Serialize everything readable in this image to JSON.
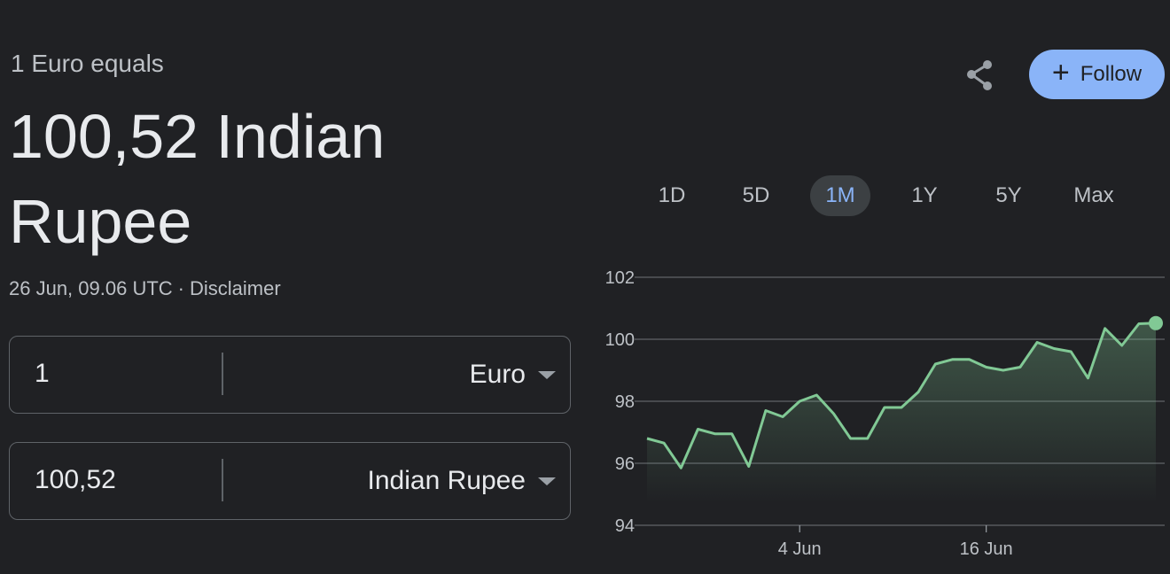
{
  "header": {
    "subtitle": "1 Euro equals",
    "result_line1": "100,52 Indian",
    "result_line2": "Rupee",
    "timestamp": "26 Jun, 09.06 UTC",
    "separator": "·",
    "disclaimer": "Disclaimer"
  },
  "actions": {
    "share_icon": "share-icon",
    "follow_label": "Follow",
    "follow_icon": "+"
  },
  "converter": {
    "from": {
      "amount": "1",
      "currency": "Euro"
    },
    "to": {
      "amount": "100,52",
      "currency": "Indian Rupee"
    }
  },
  "range_tabs": [
    "1D",
    "5D",
    "1M",
    "1Y",
    "5Y",
    "Max"
  ],
  "active_tab": "1M",
  "colors": {
    "background": "#202124",
    "line": "#81c995",
    "accent": "#8ab4f8"
  },
  "chart_data": {
    "type": "line",
    "y_ticks": [
      "102",
      "100",
      "98",
      "96",
      "94"
    ],
    "ylim": [
      94,
      102
    ],
    "x_ticks": [
      {
        "label": "4 Jun",
        "index": 9
      },
      {
        "label": "16 Jun",
        "index": 20
      }
    ],
    "grid": true,
    "series": [
      {
        "values": [
          96.8,
          96.65,
          95.85,
          97.1,
          96.95,
          96.95,
          95.9,
          97.7,
          97.5,
          98.0,
          98.2,
          97.6,
          96.8,
          96.8,
          97.8,
          97.8,
          98.3,
          99.2,
          99.35,
          99.35,
          99.1,
          99.0,
          99.1,
          99.9,
          99.7,
          99.6,
          98.75,
          100.35,
          99.8,
          100.5,
          100.52
        ]
      }
    ]
  }
}
